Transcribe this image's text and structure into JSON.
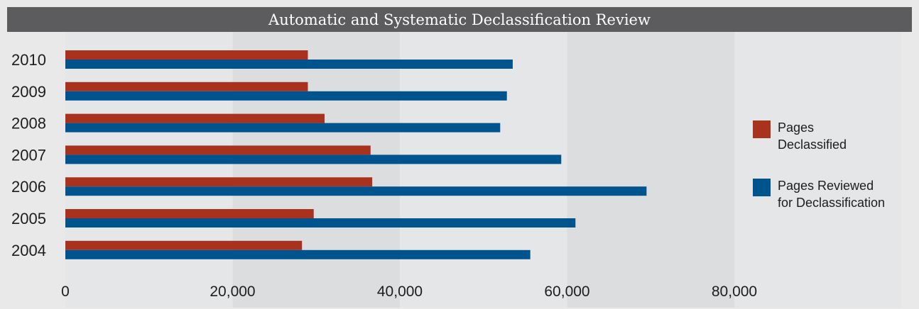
{
  "chart_data": {
    "type": "bar",
    "orientation": "horizontal",
    "title": "Automatic and Systematic Declassification Review",
    "categories": [
      "2010",
      "2009",
      "2008",
      "2007",
      "2006",
      "2005",
      "2004"
    ],
    "series": [
      {
        "name": "Pages Declassified",
        "name_lines": [
          "Pages",
          "Declassified"
        ],
        "color": "#a8321e",
        "values": [
          29000,
          29000,
          31000,
          36500,
          36700,
          29700,
          28300
        ]
      },
      {
        "name": "Pages Reviewed for Declassification",
        "name_lines": [
          "Pages Reviewed",
          "for Declassification"
        ],
        "color": "#00548e",
        "values": [
          53500,
          52800,
          52000,
          59300,
          69500,
          61000,
          55600
        ]
      }
    ],
    "xlim": [
      0,
      100000
    ],
    "xticks": [
      0,
      20000,
      40000,
      60000,
      80000
    ],
    "xtick_labels": [
      "0",
      "20,000",
      "40,000",
      "60,000",
      "80,000"
    ],
    "band_colors": [
      "#e5e6e8",
      "#dcdddf"
    ],
    "legend_position": "right",
    "grid": false
  }
}
